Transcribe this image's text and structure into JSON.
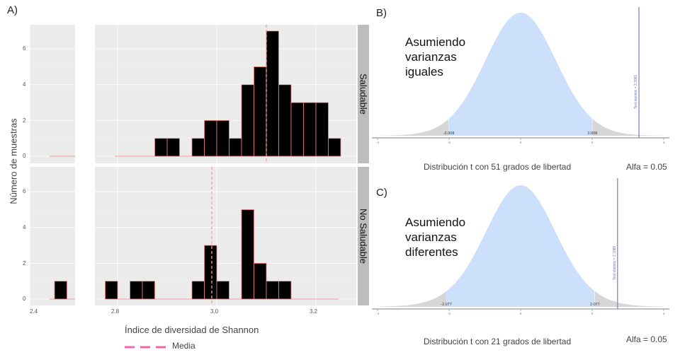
{
  "panel_a": {
    "letter": "A)",
    "y_title": "Número de muestras",
    "x_title": "Índice de diversidad de Shannon",
    "legend_label": "Media",
    "facets": [
      "Saludable",
      "No Saludable"
    ],
    "y_ticks": [
      "0",
      "2",
      "4",
      "6"
    ],
    "x_ticks_left": [
      "2.4"
    ],
    "x_ticks_right": [
      "2.8",
      "3.0",
      "3.2"
    ]
  },
  "panel_b": {
    "letter": "B)",
    "annotation": [
      "Asumiendo",
      "varianzas",
      "iguales"
    ],
    "caption": "Distribución t con 51 grados de libertad",
    "alpha": "Alfa = 0.05",
    "crit_left": "-2.008",
    "crit_right": "2.008",
    "stat_label": "Test statistic = 3.3081",
    "x_ticks": [
      "-4",
      "-2",
      "0",
      "2",
      "4"
    ]
  },
  "panel_c": {
    "letter": "C)",
    "annotation": [
      "Asumiendo",
      "varianzas",
      "diferentes"
    ],
    "caption": "Distribución t con 21 grados de libertad",
    "alpha": "Alfa = 0.05",
    "crit_left": "-2.077",
    "crit_right": "2.077",
    "stat_label": "Test statistic = 2.7089",
    "x_ticks": [
      "-4",
      "-2",
      "0",
      "2",
      "4"
    ]
  },
  "chart_data": [
    {
      "type": "bar",
      "facet": "Saludable",
      "xlabel": "Índice de diversidad de Shannon",
      "ylabel": "Número de muestras",
      "ylim": [
        0,
        7
      ],
      "bin_width": 0.025,
      "bins_start": [
        2.875,
        2.9,
        2.95,
        2.975,
        3.0,
        3.025,
        3.05,
        3.075,
        3.1,
        3.125,
        3.15,
        3.175,
        3.2,
        3.225
      ],
      "values": [
        1,
        1,
        1,
        2,
        2,
        1,
        4,
        5,
        7,
        4,
        3,
        3,
        3,
        1
      ],
      "mean": 3.1,
      "mean_label": "Media"
    },
    {
      "type": "bar",
      "facet": "No Saludable",
      "xlabel": "Índice de diversidad de Shannon",
      "ylabel": "Número de muestras",
      "ylim": [
        0,
        7
      ],
      "bin_width": 0.025,
      "bins_start": [
        2.45,
        2.775,
        2.825,
        2.85,
        2.95,
        2.975,
        3.0,
        3.05,
        3.075,
        3.1,
        3.125
      ],
      "values": [
        1,
        1,
        1,
        1,
        1,
        3,
        1,
        5,
        2,
        1,
        1
      ],
      "mean": 2.99,
      "mean_label": "Media"
    },
    {
      "type": "area",
      "name": "t distribution",
      "df": 51,
      "xlim": [
        -4,
        4
      ],
      "critical_values": [
        -2.008,
        2.008
      ],
      "test_statistic": 3.3081,
      "alpha": 0.05
    },
    {
      "type": "area",
      "name": "t distribution",
      "df": 21,
      "xlim": [
        -4,
        4
      ],
      "critical_values": [
        -2.077,
        2.077
      ],
      "test_statistic": 2.7089,
      "alpha": 0.05
    }
  ],
  "colors": {
    "panel_bg": "#ebebeb",
    "bar_fill": "#000000",
    "bar_outline": "#f08080",
    "mean_line": "#f4a09a",
    "legend_dash": "#f06aa8",
    "accept_region": "#cce0fb",
    "reject_region": "#d6d6d6",
    "stat_line": "#8a8ec9"
  }
}
